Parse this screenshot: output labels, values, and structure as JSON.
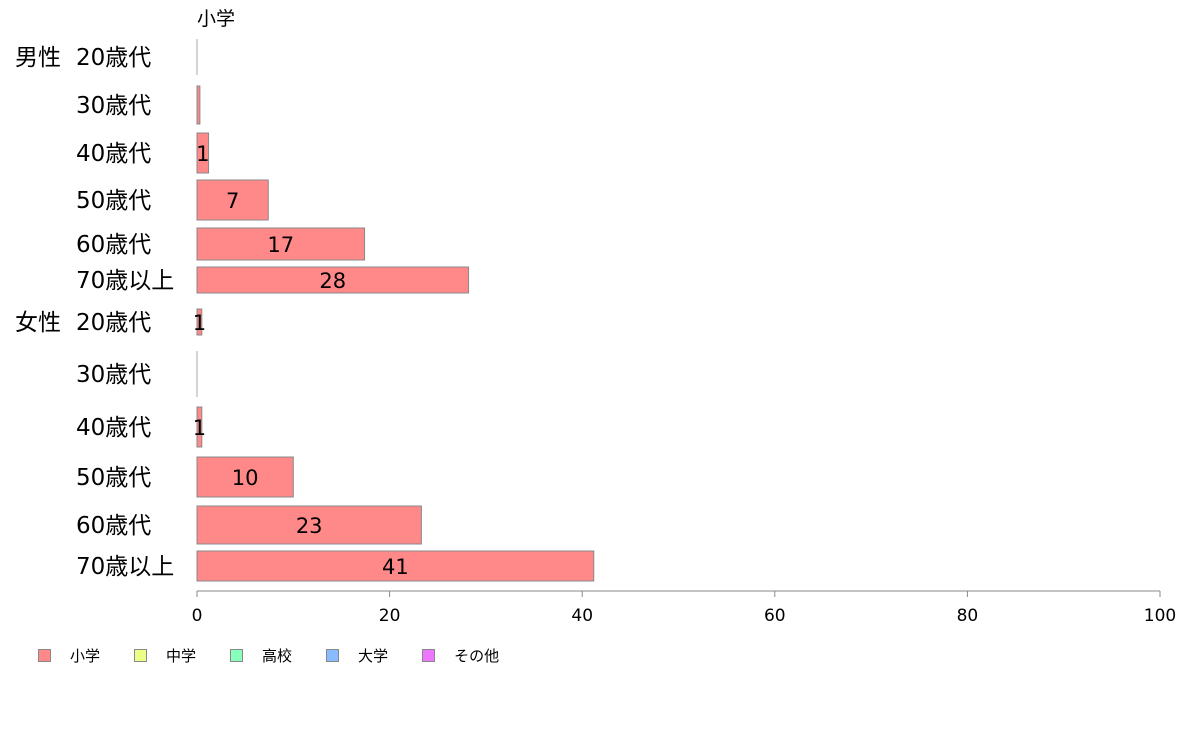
{
  "chart_data": {
    "type": "bar",
    "orientation": "horizontal",
    "stacked": true,
    "series_header": "小学",
    "groups": [
      {
        "label": "男性",
        "categories": [
          "20歳代",
          "30歳代",
          "40歳代",
          "50歳代",
          "60歳代",
          "70歳以上"
        ]
      },
      {
        "label": "女性",
        "categories": [
          "20歳代",
          "30歳代",
          "40歳代",
          "50歳代",
          "60歳代",
          "70歳以上"
        ]
      }
    ],
    "series": [
      {
        "name": "小学",
        "color": "#ff8888",
        "values": [
          0,
          0.3,
          1.2,
          7.4,
          17.4,
          28.2,
          0.5,
          0,
          0.5,
          10.0,
          23.3,
          41.2
        ],
        "labels": [
          "",
          "",
          "1",
          "7",
          "17",
          "28",
          "1",
          "",
          "1",
          "10",
          "23",
          "41"
        ]
      },
      {
        "name": "中学",
        "color": "#eeff88",
        "values": [
          0,
          0,
          0,
          0,
          0,
          0,
          0,
          0,
          0,
          0,
          0,
          0
        ]
      },
      {
        "name": "高校",
        "color": "#88ffbb",
        "values": [
          0,
          0,
          0,
          0,
          0,
          0,
          0,
          0,
          0,
          0,
          0,
          0
        ]
      },
      {
        "name": "大学",
        "color": "#88bbff",
        "values": [
          0,
          0,
          0,
          0,
          0,
          0,
          0,
          0,
          0,
          0,
          0,
          0
        ]
      },
      {
        "name": "その他",
        "color": "#ee77ff",
        "values": [
          0,
          0,
          0,
          0,
          0,
          0,
          0,
          0,
          0,
          0,
          0,
          0
        ]
      }
    ],
    "xlim": [
      0,
      100
    ],
    "xticks": [
      0,
      20,
      40,
      60,
      80,
      100
    ],
    "legend_position": "bottom-left"
  }
}
